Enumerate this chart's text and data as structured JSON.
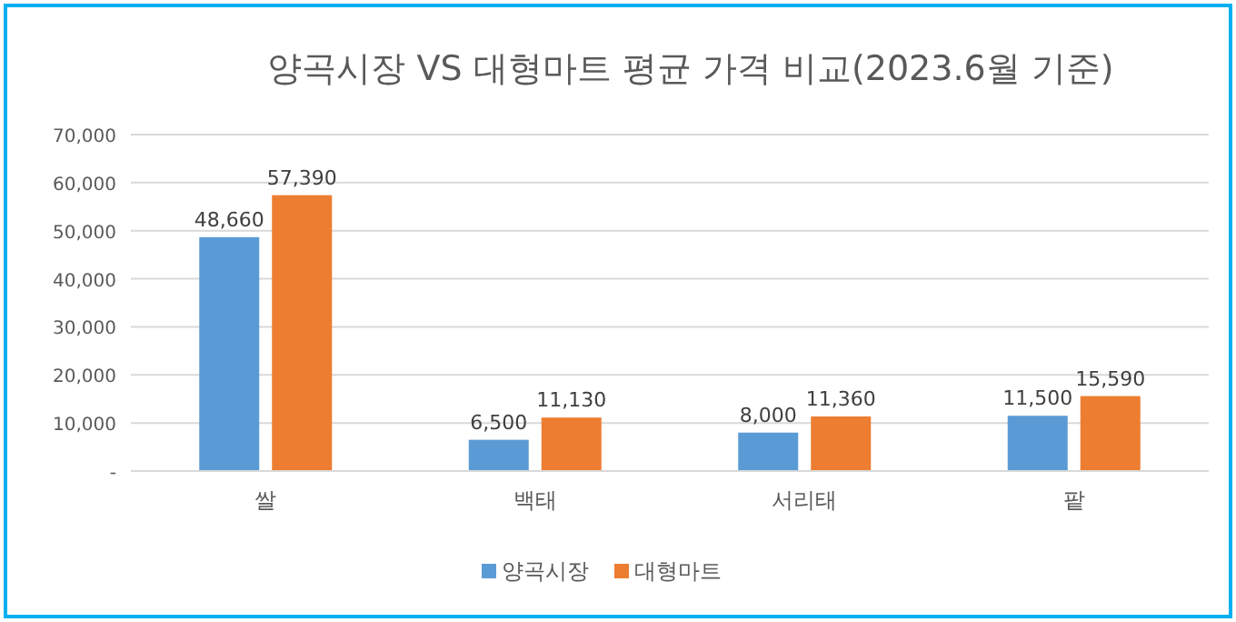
{
  "chart_data": {
    "type": "bar",
    "title": "양곡시장 VS 대형마트 평균 가격 비교(2023.6월 기준)",
    "categories": [
      "쌀",
      "백태",
      "서리태",
      "팥"
    ],
    "series": [
      {
        "name": "양곡시장",
        "color": "#5b9bd5",
        "values": [
          48660,
          6500,
          8000,
          11500
        ],
        "value_labels": [
          "48,660",
          "6,500",
          "8,000",
          "11,500"
        ]
      },
      {
        "name": "대형마트",
        "color": "#ed7d31",
        "values": [
          57390,
          11130,
          11360,
          15590
        ],
        "value_labels": [
          "57,390",
          "11,130",
          "11,360",
          "15,590"
        ]
      }
    ],
    "ylim": [
      0,
      70000
    ],
    "yticks": [
      {
        "value": 0,
        "label": "-"
      },
      {
        "value": 10000,
        "label": "10,000"
      },
      {
        "value": 20000,
        "label": "20,000"
      },
      {
        "value": 30000,
        "label": "30,000"
      },
      {
        "value": 40000,
        "label": "40,000"
      },
      {
        "value": 50000,
        "label": "50,000"
      },
      {
        "value": 60000,
        "label": "60,000"
      },
      {
        "value": 70000,
        "label": "70,000"
      }
    ],
    "grid": "y",
    "legend": "bottom"
  }
}
